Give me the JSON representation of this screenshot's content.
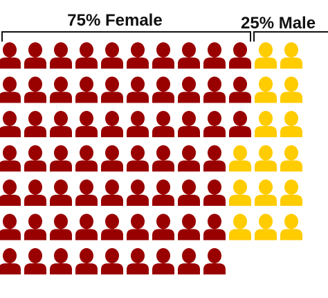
{
  "chart_data": {
    "type": "pictogram",
    "total": 100,
    "columns": 12,
    "series": [
      {
        "name": "Female",
        "value": 75,
        "percent_label": "75%",
        "color": "#990000"
      },
      {
        "name": "Male",
        "value": 25,
        "percent_label": "25%",
        "color": "#FFCC00"
      }
    ],
    "labels": {
      "female": "75% Female",
      "male": "25% Male"
    },
    "icon": "person-icon"
  }
}
